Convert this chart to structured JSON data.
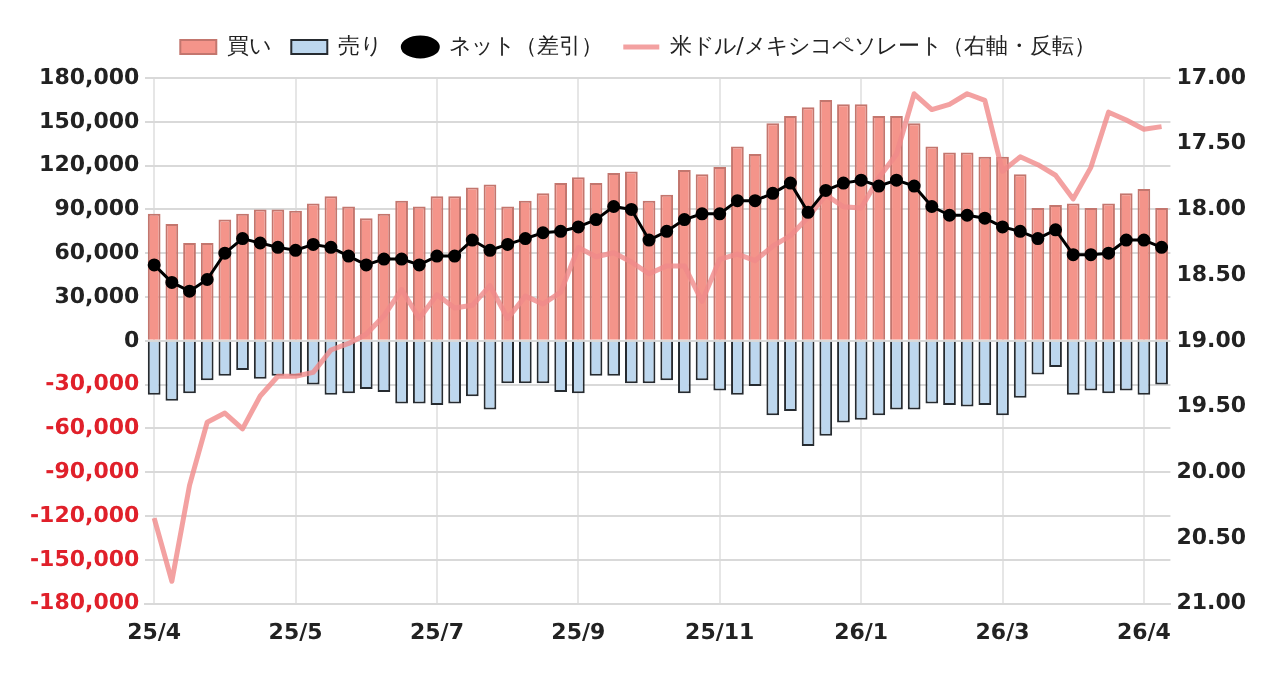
{
  "chart_data": {
    "type": "bar",
    "stacked": true,
    "legend": "top",
    "grid": true,
    "categories": [
      "25/4",
      null,
      null,
      null,
      null,
      null,
      null,
      null,
      "25/5",
      null,
      null,
      null,
      null,
      null,
      null,
      null,
      "25/7",
      null,
      null,
      null,
      null,
      null,
      null,
      null,
      "25/9",
      null,
      null,
      null,
      null,
      null,
      null,
      null,
      "25/11",
      null,
      null,
      null,
      null,
      null,
      null,
      null,
      "26/1",
      null,
      null,
      null,
      null,
      null,
      null,
      null,
      "26/3",
      null,
      null,
      null,
      null,
      null,
      null,
      null,
      "26/4",
      null
    ],
    "ylim": [
      -180000,
      180000
    ],
    "yticks": [
      {
        "value": -180000,
        "label": "-180,000"
      },
      {
        "value": -150000,
        "label": "-150,000"
      },
      {
        "value": -120000,
        "label": "-120,000"
      },
      {
        "value": -90000,
        "label": "-90,000"
      },
      {
        "value": -60000,
        "label": "-60,000"
      },
      {
        "value": -30000,
        "label": "-30,000"
      },
      0,
      {
        "value": 30000,
        "label": "30,000"
      },
      {
        "value": 60000,
        "label": "60,000"
      },
      {
        "value": 90000,
        "label": "90,000"
      },
      {
        "value": 120000,
        "label": "120,000"
      },
      {
        "value": 150000,
        "label": "150,000"
      },
      {
        "value": 180000,
        "label": "180,000"
      }
    ],
    "y2lim": [
      21,
      17
    ],
    "y2ticks": [
      {
        "value": 17,
        "label": "17.00"
      },
      {
        "value": 17.5,
        "label": "17.50"
      },
      {
        "value": 18,
        "label": "18.00"
      },
      {
        "value": 18.5,
        "label": "18.50"
      },
      {
        "value": 19,
        "label": "19.00"
      },
      {
        "value": 19.5,
        "label": "19.50"
      },
      {
        "value": 20,
        "label": "20.00"
      },
      {
        "value": 20.5,
        "label": "20.50"
      },
      {
        "value": 21,
        "label": "21.00"
      }
    ],
    "series": [
      {
        "name": "買い",
        "color": "#f4948a",
        "values": [
          87000,
          80000,
          67000,
          67000,
          83000,
          87000,
          90000,
          90000,
          89000,
          94000,
          99000,
          92000,
          84000,
          87000,
          96000,
          92000,
          99000,
          99000,
          105000,
          107000,
          92000,
          96000,
          101000,
          108000,
          112000,
          108000,
          115000,
          116000,
          96000,
          100000,
          117000,
          114000,
          119000,
          133000,
          128000,
          149000,
          154000,
          160000,
          165000,
          162000,
          162000,
          154000,
          154000,
          149000,
          133000,
          129000,
          129000,
          126000,
          126000,
          114000,
          91000,
          93000,
          94000,
          91000,
          94000,
          101000,
          104000,
          91000
        ]
      },
      {
        "name": "売り",
        "color": "#bdd7ee",
        "values": [
          -37000,
          -41000,
          -36000,
          -27000,
          -24000,
          -20000,
          -26000,
          -24000,
          -24000,
          -30000,
          -37000,
          -36000,
          -33000,
          -35000,
          -43000,
          -43000,
          -44000,
          -43000,
          -38000,
          -47000,
          -29000,
          -29000,
          -29000,
          -35000,
          -36000,
          -24000,
          -24000,
          -29000,
          -29000,
          -27000,
          -36000,
          -27000,
          -34000,
          -37000,
          -31000,
          -51000,
          -48000,
          -72000,
          -65000,
          -56000,
          -54000,
          -51000,
          -47000,
          -47000,
          -43000,
          -44000,
          -45000,
          -44000,
          -51000,
          -39000,
          -23000,
          -18000,
          -37000,
          -34000,
          -36000,
          -34000,
          -37000,
          -30000
        ]
      },
      {
        "name": "ネット（差引）",
        "type": "line",
        "color": "#000000",
        "marker": "circle",
        "values": [
          52000,
          40000,
          34000,
          42000,
          60000,
          70000,
          67000,
          64000,
          62000,
          66000,
          64000,
          58000,
          52000,
          56000,
          56000,
          52000,
          58000,
          58000,
          69000,
          62000,
          66000,
          70000,
          74000,
          75000,
          78000,
          83000,
          92000,
          90000,
          69000,
          75000,
          83000,
          87000,
          87000,
          96000,
          96000,
          101000,
          108000,
          88000,
          103000,
          108000,
          110000,
          106000,
          110000,
          106000,
          92000,
          86000,
          86000,
          84000,
          78000,
          75000,
          70000,
          76000,
          59000,
          59000,
          60000,
          69000,
          69000,
          64000
        ]
      },
      {
        "name": "米ドル/メキシコペソレート（右軸・反転）",
        "type": "line",
        "axis": "y2",
        "color": "#f08a8a",
        "values": [
          20.35,
          20.83,
          20.1,
          19.62,
          19.55,
          19.67,
          19.42,
          19.27,
          19.27,
          19.24,
          19.07,
          19.02,
          18.95,
          18.81,
          18.61,
          18.83,
          18.65,
          18.75,
          18.73,
          18.58,
          18.83,
          18.66,
          18.72,
          18.63,
          18.29,
          18.36,
          18.33,
          18.4,
          18.49,
          18.43,
          18.43,
          18.7,
          18.38,
          18.34,
          18.39,
          18.28,
          18.2,
          18.06,
          17.89,
          17.98,
          17.99,
          17.76,
          17.58,
          17.12,
          17.24,
          17.2,
          17.12,
          17.17,
          17.71,
          17.6,
          17.66,
          17.74,
          17.92,
          17.68,
          17.26,
          17.32,
          17.39,
          17.37
        ]
      }
    ]
  }
}
